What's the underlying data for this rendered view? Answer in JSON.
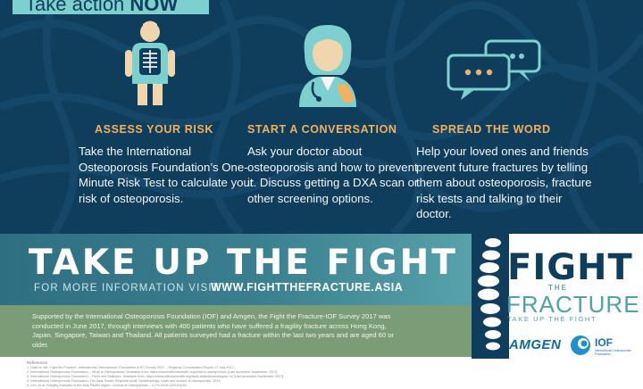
{
  "banner": {
    "prefix": "Take action ",
    "highlight": "NOW"
  },
  "columns": [
    {
      "icon": "xray-person-icon",
      "title": "ASSESS YOUR RISK",
      "body": "Take the International Osteoporosis Foundation’s One-Minute Risk Test to calculate your risk of osteoporosis."
    },
    {
      "icon": "doctor-phone-icon",
      "title": "START A CONVERSATION",
      "body": "Ask your doctor about osteoporosis and how to prevent it. Discuss getting a DXA scan or other screening options."
    },
    {
      "icon": "speech-bubbles-icon",
      "title": "SPREAD THE WORD",
      "body": "Help your loved ones and friends prevent future fractures by telling them about osteoporosis, fracture risk tests and talking to their doctor."
    }
  ],
  "fight": {
    "headline": "TAKE UP THE FIGHT",
    "info_prefix": "FOR MORE INFORMATION VISIT",
    "url": "WWW.FIGHTTHEFRACTURE.ASIA"
  },
  "support_text": "Supported by the International Osteoporosis Foundation (IOF) and Amgen, the Fight the Fracture-IOF Survey 2017 was conducted in June 2017, through interviews with 400 patients who have suffered a fragility fracture across Hong Kong, Japan, Singapore, Taiwan and Thailand. All patients surveyed had a fracture within the last two years and are aged 60 or older.",
  "references": {
    "title": "References",
    "lines": [
      "1.   Data on file: Fight the Fracture–International Osteoporosis Foundation (IOF) Survey 2017 – Regional Consolidated Report 17 July 2017.",
      "2.   International Osteoporosis Foundation – What is Osteoporosis? Available from: https://www.iofbonehealth.org/what-is-osteoporosis [Last accessed September 2017].",
      "3.   International Osteoporosis Foundation – Facts and Statistics. Available from: https://www.iofbonehealth.org/facts-statistics#category-14 [Last accessed September 2017].",
      "4.   International Osteoporosis Foundation. The Asia-Pacific Regional Audit: Epidemiology, costs and burden of osteoporosis. 2013.",
      "5.   Lee, et al. Fragility fractures in the Asia Pacific region. Journal of Osteoporosis – 4.7% 2016:1201(16)30."
    ]
  },
  "logo": {
    "fight": "FIGHT",
    "the": "THE",
    "fracture": "FRACTURE",
    "tagline": "TAKE UP THE FIGHT",
    "amgen": "AMGEN",
    "iof": "IOF",
    "iof_sub": "International Osteoporosis Foundation"
  },
  "colors": {
    "navy": "#0f3d5c",
    "teal": "#7ed0cf",
    "orange": "#f1b15f",
    "olive": "#7a9c76"
  }
}
